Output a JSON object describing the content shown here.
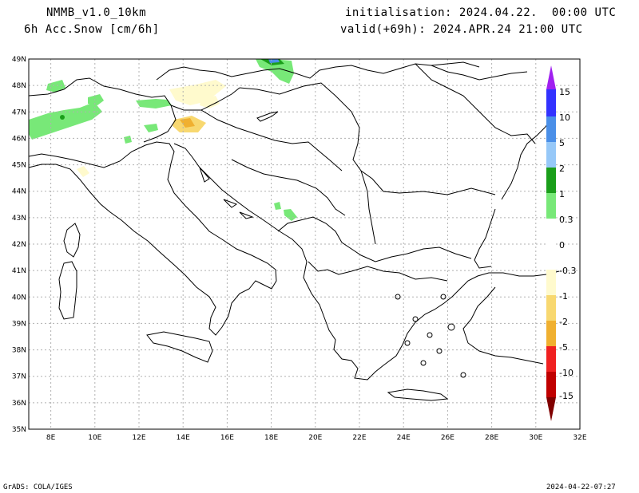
{
  "header": {
    "model": "NMMB_v1.0_10km",
    "field": "6h Acc.Snow [cm/6h]",
    "init": "initialisation: 2024.04.22.  00:00 UTC",
    "valid": "valid(+69h): 2024.APR.24 21:00 UTC"
  },
  "map": {
    "lat_labels": [
      "49N",
      "48N",
      "47N",
      "46N",
      "45N",
      "44N",
      "43N",
      "42N",
      "41N",
      "40N",
      "39N",
      "38N",
      "37N",
      "36N",
      "35N"
    ],
    "lon_labels": [
      "8E",
      "10E",
      "12E",
      "14E",
      "16E",
      "18E",
      "20E",
      "22E",
      "24E",
      "26E",
      "28E",
      "30E",
      "32E"
    ],
    "lon_range": [
      7,
      32
    ],
    "lat_range": [
      35,
      49
    ]
  },
  "colorbar": {
    "labels": [
      "15",
      "10",
      "5",
      "2",
      "1",
      "0.3",
      "0",
      "-0.3",
      "-1",
      "-2",
      "-5",
      "-10",
      "-15"
    ],
    "colors_top": [
      "#a020f0",
      "#3232ff",
      "#4a8fe8",
      "#96c8f8",
      "#1a9e1a",
      "#78e878"
    ],
    "colors_bottom": [
      "#fffacd",
      "#f8d870",
      "#f0b030",
      "#f08030",
      "#f02020",
      "#c00000",
      "#800000"
    ]
  },
  "footer": {
    "left": "GrADS: COLA/IGES",
    "right": "2024-04-22-07:27"
  }
}
